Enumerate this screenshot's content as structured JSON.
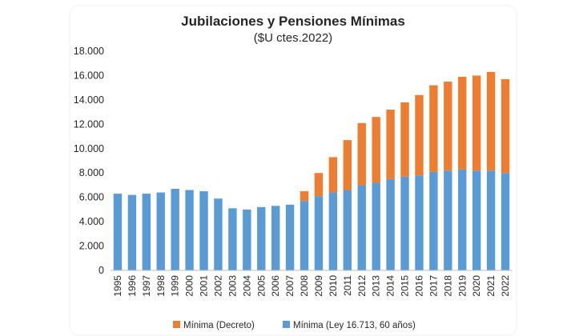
{
  "chart_data": {
    "type": "bar",
    "stacked": true,
    "title": "Jubilaciones y Pensiones Mínimas",
    "subtitle": "($U ctes.2022)",
    "categories": [
      "1995",
      "1996",
      "1997",
      "1998",
      "1999",
      "2000",
      "2001",
      "2002",
      "2003",
      "2004",
      "2005",
      "2006",
      "2007",
      "2008",
      "2009",
      "2010",
      "2011",
      "2012",
      "2013",
      "2014",
      "2015",
      "2016",
      "2017",
      "2018",
      "2019",
      "2020",
      "2021",
      "2022"
    ],
    "y_ticks": [
      "0",
      "2.000",
      "4.000",
      "6.000",
      "8.000",
      "10.000",
      "12.000",
      "14.000",
      "16.000",
      "18.000"
    ],
    "ylim": [
      0,
      18000
    ],
    "grid": false,
    "legend_position": "bottom",
    "series": [
      {
        "name": "Mínima (Ley 16.713, 60 años)",
        "color": "#5B9BD5",
        "values": [
          6300,
          6200,
          6300,
          6400,
          6700,
          6600,
          6500,
          5900,
          5100,
          5000,
          5200,
          5300,
          5400,
          5700,
          6100,
          6400,
          6600,
          7000,
          7200,
          7500,
          7700,
          7800,
          8100,
          8200,
          8300,
          8200,
          8200,
          8000
        ]
      },
      {
        "name": "Mínima (Decreto)",
        "color": "#ED7D31",
        "values": [
          0,
          0,
          0,
          0,
          0,
          0,
          0,
          0,
          0,
          0,
          0,
          0,
          0,
          800,
          1900,
          2900,
          4100,
          5100,
          5400,
          5700,
          6100,
          6600,
          7100,
          7300,
          7600,
          7800,
          8100,
          7700
        ]
      }
    ],
    "legend_order": [
      1,
      0
    ]
  }
}
